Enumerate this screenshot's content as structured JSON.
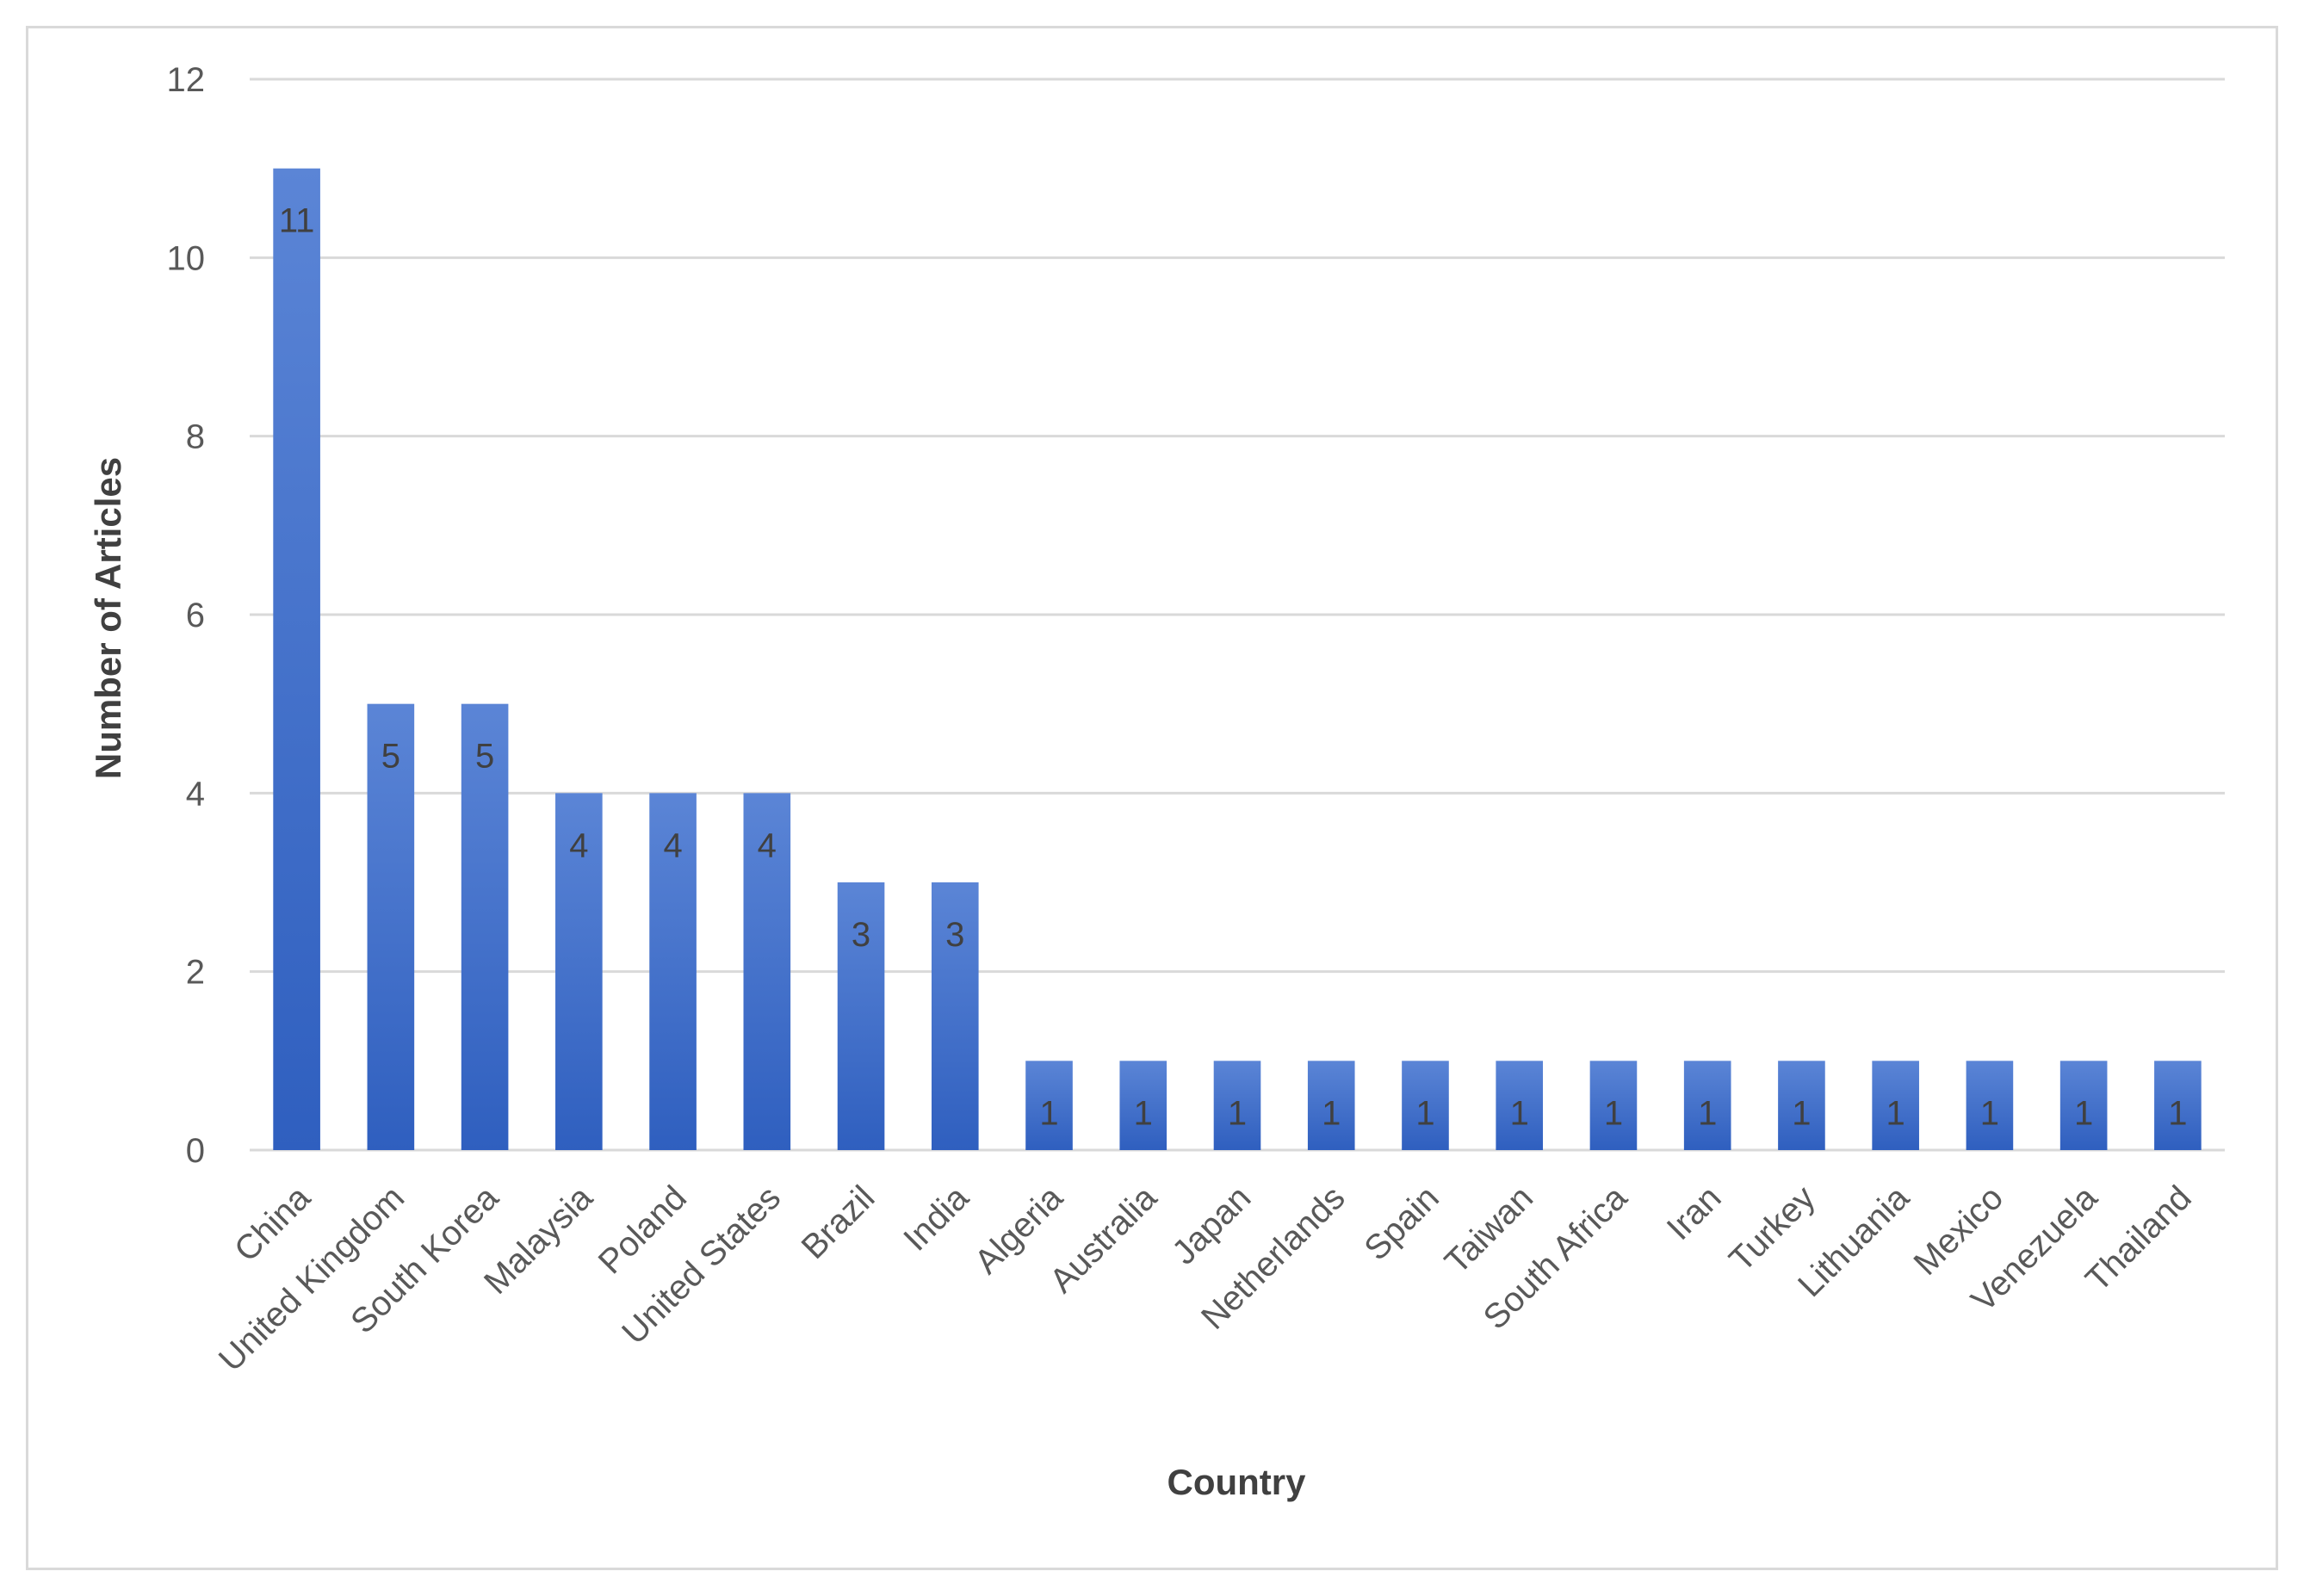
{
  "chart_data": {
    "type": "bar",
    "title": "",
    "xlabel": "Country",
    "ylabel": "Number of Articles",
    "ylim": [
      0,
      12
    ],
    "yticks": [
      0,
      2,
      4,
      6,
      8,
      10,
      12
    ],
    "grid": true,
    "legend": "none",
    "categories": [
      "China",
      "United Kingdom",
      "South Korea",
      "Malaysia",
      "Poland",
      "United States",
      "Brazil",
      "India",
      "Algeria",
      "Australia",
      "Japan",
      "Netherlands",
      "Spain",
      "Taiwan",
      "South Africa",
      "Iran",
      "Turkey",
      "Lithuania",
      "Mexico",
      "Venezuela",
      "Thailand"
    ],
    "values": [
      11,
      5,
      5,
      4,
      4,
      4,
      3,
      3,
      1,
      1,
      1,
      1,
      1,
      1,
      1,
      1,
      1,
      1,
      1,
      1,
      1
    ],
    "bar_color": "#4472c4",
    "bar_gradient_top": "#5b85d6",
    "bar_gradient_bottom": "#2f5fbf"
  }
}
